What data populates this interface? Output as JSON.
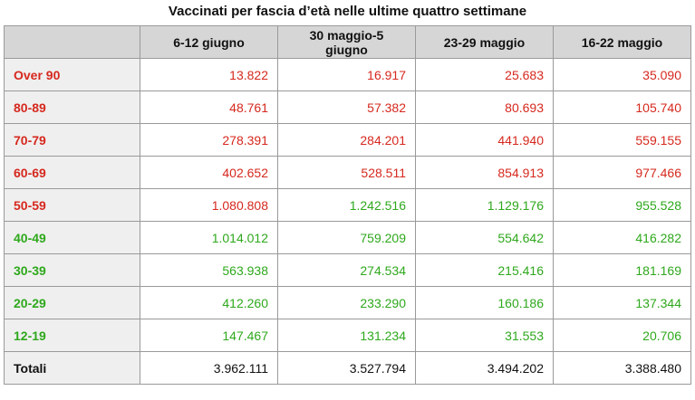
{
  "title": "Vaccinati per fascia d’età nelle ultime quattro settimane",
  "table": {
    "header": [
      "",
      "6-12 giugno",
      "30 maggio-5 giugno",
      "23-29 maggio",
      "16-22 maggio"
    ],
    "rows": [
      [
        "Over 90",
        "13.822",
        "16.917",
        "25.683",
        "35.090"
      ],
      [
        "80-89",
        "48.761",
        "57.382",
        "80.693",
        "105.740"
      ],
      [
        "70-79",
        "278.391",
        "284.201",
        "441.940",
        "559.155"
      ],
      [
        "60-69",
        "402.652",
        "528.511",
        "854.913",
        "977.466"
      ],
      [
        "50-59",
        "1.080.808",
        "1.242.516",
        "1.129.176",
        "955.528"
      ],
      [
        "40-49",
        "1.014.012",
        "759.209",
        "554.642",
        "416.282"
      ],
      [
        "30-39",
        "563.938",
        "274.534",
        "215.416",
        "181.169"
      ],
      [
        "20-29",
        "412.260",
        "233.290",
        "160.186",
        "137.344"
      ],
      [
        "12-19",
        "147.467",
        "131.234",
        "31.553",
        "20.706"
      ],
      [
        "Totali",
        "3.962.111",
        "3.527.794",
        "3.494.202",
        "3.388.480"
      ]
    ]
  }
}
